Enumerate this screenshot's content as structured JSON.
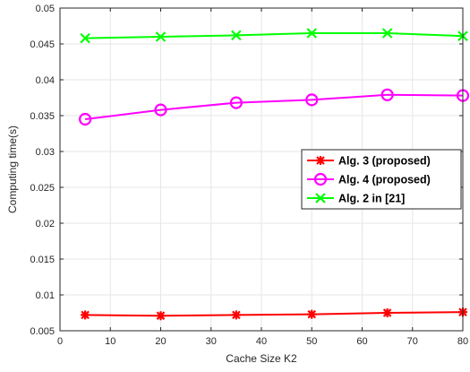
{
  "chart_data": {
    "type": "line",
    "xlabel": "Cache Size K2",
    "ylabel": "Computing time(s)",
    "xlim": [
      0,
      80
    ],
    "ylim": [
      0.005,
      0.05
    ],
    "xticks": [
      0,
      10,
      20,
      30,
      40,
      50,
      60,
      70,
      80
    ],
    "yticks": [
      0.005,
      0.01,
      0.015,
      0.02,
      0.025,
      0.03,
      0.035,
      0.04,
      0.045,
      0.05
    ],
    "ytick_labels": [
      "0.005",
      "0.01",
      "0.015",
      "0.02",
      "0.025",
      "0.03",
      "0.035",
      "0.04",
      "0.045",
      "0.05"
    ],
    "grid": true,
    "legend_position": "right",
    "x": [
      5,
      20,
      35,
      50,
      65,
      80
    ],
    "series": [
      {
        "name": "Alg. 3 (proposed)",
        "color": "#ff0000",
        "marker": "asterisk",
        "values": [
          0.0072,
          0.0071,
          0.0072,
          0.0073,
          0.0075,
          0.0076
        ]
      },
      {
        "name": "Alg. 4 (proposed)",
        "color": "#ff00ff",
        "marker": "circle",
        "values": [
          0.0345,
          0.0358,
          0.0368,
          0.0372,
          0.0379,
          0.0378
        ]
      },
      {
        "name": "Alg. 2 in [21]",
        "color": "#00ff00",
        "marker": "x",
        "values": [
          0.0458,
          0.046,
          0.0462,
          0.0465,
          0.0465,
          0.0461
        ]
      }
    ]
  }
}
